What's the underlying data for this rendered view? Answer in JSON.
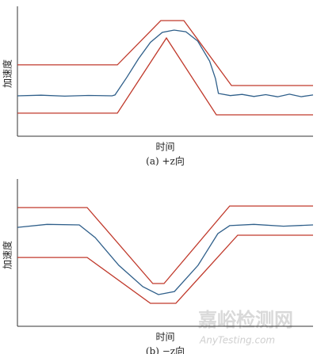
{
  "chart_data": [
    {
      "type": "line",
      "x_label": "时间",
      "y_label": "加速度",
      "caption": "(a)  +z向",
      "xlim": [
        0,
        100
      ],
      "ylim": [
        0,
        100
      ],
      "series": [
        {
          "color": "#c0392b",
          "x": [
            0,
            33.8,
            48.5,
            56.3,
            72.4,
            100
          ],
          "values": [
            57,
            57,
            92.4,
            92.4,
            40.5,
            40.5
          ]
        },
        {
          "color": "#c0392b",
          "x": [
            0,
            33.8,
            50.4,
            67.3,
            100
          ],
          "values": [
            18.4,
            18.4,
            78.5,
            17.1,
            17.1
          ]
        },
        {
          "color": "#2f5f8a",
          "x": [
            0,
            8,
            16,
            24,
            32,
            33,
            37,
            41,
            45,
            49,
            53,
            57,
            61,
            65,
            67,
            68,
            72,
            76,
            80,
            84,
            88,
            92,
            96,
            100
          ],
          "values": [
            32.3,
            32.8,
            32.0,
            32.6,
            32.3,
            33,
            47,
            62,
            75,
            83,
            84.8,
            83.5,
            76,
            60,
            46,
            34.2,
            32.5,
            33.4,
            31.8,
            33.2,
            31.5,
            33.6,
            31.6,
            33
          ]
        }
      ]
    },
    {
      "type": "line",
      "x_label": "时间",
      "y_label": "加速度",
      "caption": "(b)  −z向",
      "xlim": [
        0,
        100
      ],
      "ylim": [
        0,
        100
      ],
      "series": [
        {
          "color": "#c0392b",
          "x": [
            0,
            23.6,
            45.8,
            49.6,
            71.8,
            100
          ],
          "values": [
            83.3,
            83.3,
            30,
            30,
            84.4,
            84.4
          ]
        },
        {
          "color": "#c0392b",
          "x": [
            0,
            23.6,
            45,
            53.6,
            74.5,
            100
          ],
          "values": [
            48.3,
            48.3,
            16.1,
            16.1,
            63.9,
            63.9
          ]
        },
        {
          "color": "#2f5f8a",
          "x": [
            0,
            10,
            20.9,
            26.3,
            34.3,
            42.4,
            47.7,
            53.1,
            61.1,
            67.8,
            71.8,
            80,
            90,
            100
          ],
          "values": [
            69.4,
            71.5,
            71.1,
            62.2,
            42.8,
            27.8,
            22.2,
            24.4,
            42.8,
            65,
            70.6,
            71.5,
            70.2,
            71.1
          ]
        }
      ]
    }
  ],
  "watermark": {
    "title": "嘉峪检测网",
    "url": "AnyTesting.com"
  }
}
